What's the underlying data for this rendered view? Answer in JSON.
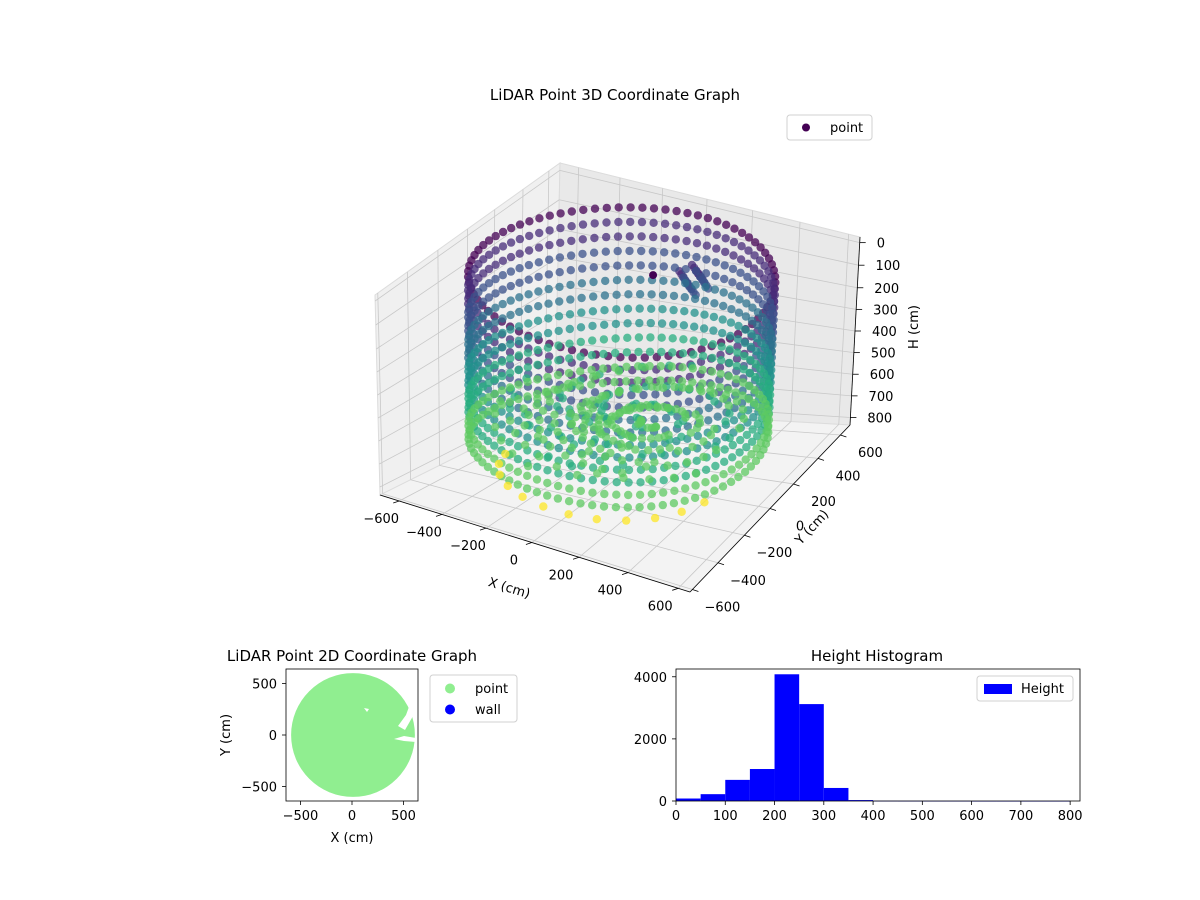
{
  "chart_data": [
    {
      "type": "scatter",
      "projection": "3d",
      "title": "LiDAR Point 3D Coordinate Graph",
      "xlabel": "X (cm)",
      "ylabel": "Y (cm)",
      "zlabel": "H (cm)",
      "xticks": [
        "−600",
        "−400",
        "−200",
        "0",
        "200",
        "400",
        "600"
      ],
      "yticks": [
        "600",
        "400",
        "200",
        "0",
        "−200",
        "−400",
        "−600"
      ],
      "zticks": [
        "0",
        "100",
        "200",
        "300",
        "400",
        "500",
        "600",
        "700",
        "800"
      ],
      "xlim": [
        -650,
        650
      ],
      "ylim": [
        -650,
        650
      ],
      "zlim": [
        0,
        850
      ],
      "z_inverted": true,
      "grid": true,
      "colormap": "viridis",
      "legend": {
        "position": "top-right",
        "entries": [
          {
            "label": "point",
            "color": "#440154"
          }
        ]
      },
      "description_points": {
        "wall_ring_radius": 560,
        "wall_height_range": [
          0,
          700
        ],
        "floor_height": 700,
        "lower_ring_height": 800
      }
    },
    {
      "type": "scatter",
      "title": "LiDAR Point 2D Coordinate Graph",
      "xlabel": "X (cm)",
      "ylabel": "Y (cm)",
      "xticks": [
        "−500",
        "0",
        "500"
      ],
      "yticks": [
        "500",
        "0",
        "−500"
      ],
      "xlim": [
        -640,
        640
      ],
      "ylim": [
        -640,
        640
      ],
      "legend": {
        "position": "outside-right",
        "entries": [
          {
            "label": "point",
            "color": "#90ee90"
          },
          {
            "label": "wall",
            "color": "#0000ff"
          }
        ]
      },
      "region": {
        "shape": "disk",
        "radius": 600,
        "color": "#90ee90"
      }
    },
    {
      "type": "bar",
      "subtype": "histogram",
      "title": "Height Histogram",
      "xticks": [
        "0",
        "100",
        "200",
        "300",
        "400",
        "500",
        "600",
        "700",
        "800"
      ],
      "yticks": [
        "0",
        "2000",
        "4000"
      ],
      "xlim": [
        0,
        820
      ],
      "ylim": [
        0,
        4250
      ],
      "color": "#0000ff",
      "legend": {
        "position": "top-right",
        "entries": [
          {
            "label": "Height",
            "color": "#0000ff"
          }
        ]
      },
      "bins": [
        {
          "start": 0,
          "end": 50,
          "value": 80
        },
        {
          "start": 50,
          "end": 100,
          "value": 220
        },
        {
          "start": 100,
          "end": 150,
          "value": 680
        },
        {
          "start": 150,
          "end": 200,
          "value": 1030
        },
        {
          "start": 200,
          "end": 250,
          "value": 4080
        },
        {
          "start": 250,
          "end": 300,
          "value": 3120
        },
        {
          "start": 300,
          "end": 350,
          "value": 420
        },
        {
          "start": 350,
          "end": 400,
          "value": 30
        },
        {
          "start": 400,
          "end": 450,
          "value": 6
        },
        {
          "start": 450,
          "end": 500,
          "value": 4
        },
        {
          "start": 500,
          "end": 550,
          "value": 3
        },
        {
          "start": 550,
          "end": 600,
          "value": 3
        },
        {
          "start": 600,
          "end": 650,
          "value": 2
        },
        {
          "start": 650,
          "end": 700,
          "value": 2
        },
        {
          "start": 700,
          "end": 750,
          "value": 2
        },
        {
          "start": 750,
          "end": 800,
          "value": 2
        }
      ]
    }
  ]
}
